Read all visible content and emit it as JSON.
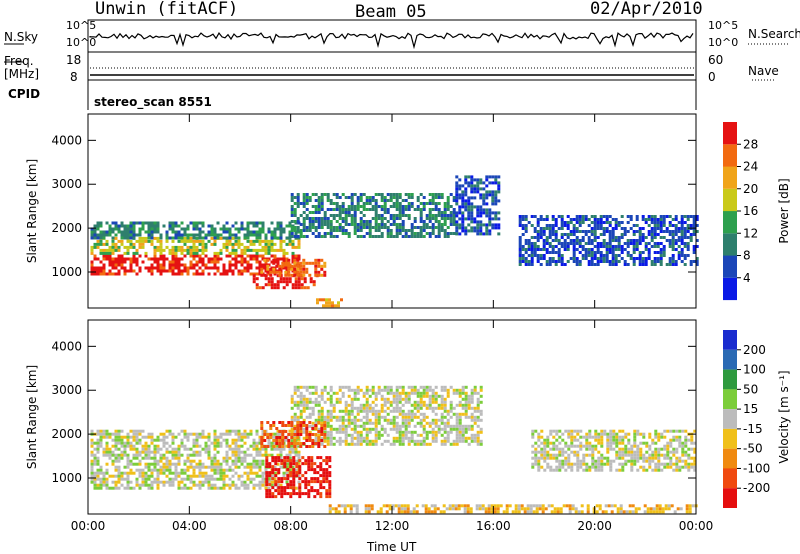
{
  "header": {
    "station": "Unwin (fitACF)",
    "beam": "Beam 05",
    "date": "02/Apr/2010"
  },
  "top_panels": {
    "nsky_label": "N.Sky",
    "nsky_ticks": [
      "10^5",
      "10^0"
    ],
    "nsearch_label": "N.Search",
    "freq_label": "Freq.",
    "freq_unit": "[MHz]",
    "freq_ticks": [
      "18",
      "8"
    ],
    "nave_ticks": [
      "60",
      "0"
    ],
    "nave_label": "Nave",
    "cpid_label": "CPID",
    "cpid_value": "stereo_scan 8551"
  },
  "chart_data": [
    {
      "type": "heatmap",
      "name_label": "Power [dB]",
      "ylabel": "Slant Range [km]",
      "xlabel": "Time UT",
      "x_ticks": [
        "00:00",
        "04:00",
        "08:00",
        "12:00",
        "16:00",
        "20:00",
        "00:00"
      ],
      "xlim_hours": [
        0,
        24
      ],
      "y_ticks": [
        "1000",
        "2000",
        "3000",
        "4000"
      ],
      "ylim": [
        180,
        4600
      ],
      "colorbar": {
        "label": "Power [dB]",
        "ticks": [
          "4",
          "8",
          "12",
          "16",
          "20",
          "24",
          "28"
        ],
        "colors": [
          "#0a1ae6",
          "#1b46b8",
          "#2e7f6d",
          "#2ea04e",
          "#c9c91a",
          "#f0a41a",
          "#f26a10",
          "#e51212"
        ]
      },
      "regions": [
        {
          "t0": 0.1,
          "t1": 8.3,
          "r0": 950,
          "r1": 1400,
          "level": 7
        },
        {
          "t0": 0.1,
          "t1": 8.3,
          "r0": 1400,
          "r1": 1800,
          "level": 4
        },
        {
          "t0": 0.1,
          "t1": 8.3,
          "r0": 1800,
          "r1": 2150,
          "level": 2
        },
        {
          "t0": 6.5,
          "t1": 9.0,
          "r0": 650,
          "r1": 950,
          "level": 7
        },
        {
          "t0": 6.8,
          "t1": 9.3,
          "r0": 950,
          "r1": 1300,
          "level": 6
        },
        {
          "t0": 8.0,
          "t1": 14.5,
          "r0": 1800,
          "r1": 2800,
          "level": 2
        },
        {
          "t0": 14.5,
          "t1": 16.2,
          "r0": 1900,
          "r1": 3200,
          "level": 1
        },
        {
          "t0": 17.0,
          "t1": 24.0,
          "r0": 1200,
          "r1": 2300,
          "level": 1
        },
        {
          "t0": 9.0,
          "t1": 10.0,
          "r0": 200,
          "r1": 400,
          "level": 5
        }
      ]
    },
    {
      "type": "heatmap",
      "name_label": "Velocity [m s-1]",
      "ylabel": "Slant Range [km]",
      "xlabel": "Time UT",
      "x_ticks": [
        "00:00",
        "04:00",
        "08:00",
        "12:00",
        "16:00",
        "20:00",
        "00:00"
      ],
      "xlim_hours": [
        0,
        24
      ],
      "y_ticks": [
        "1000",
        "2000",
        "3000",
        "4000"
      ],
      "ylim": [
        180,
        4600
      ],
      "colorbar": {
        "label": "Velocity [m s⁻¹]",
        "ticks": [
          "200",
          "100",
          "50",
          "15",
          "-15",
          "-50",
          "-100",
          "-200"
        ],
        "colors": [
          "#1a2ccf",
          "#2a6ab4",
          "#2e9a3e",
          "#7ccd3a",
          "#bcbcbc",
          "#f0c01a",
          "#f08a10",
          "#f04a10",
          "#e50e0e"
        ]
      },
      "regions": [
        {
          "t0": 0.1,
          "t1": 8.3,
          "r0": 800,
          "r1": 2100,
          "level": 4
        },
        {
          "t0": 8.0,
          "t1": 15.5,
          "r0": 1800,
          "r1": 3100,
          "level": 4
        },
        {
          "t0": 7.0,
          "t1": 9.6,
          "r0": 600,
          "r1": 1500,
          "level": 8
        },
        {
          "t0": 6.8,
          "t1": 9.3,
          "r0": 1700,
          "r1": 2300,
          "level": 7
        },
        {
          "t0": 17.5,
          "t1": 24.0,
          "r0": 1200,
          "r1": 2100,
          "level": 4
        },
        {
          "t0": 9.5,
          "t1": 24.0,
          "r0": 200,
          "r1": 400,
          "level": 5
        }
      ]
    }
  ]
}
